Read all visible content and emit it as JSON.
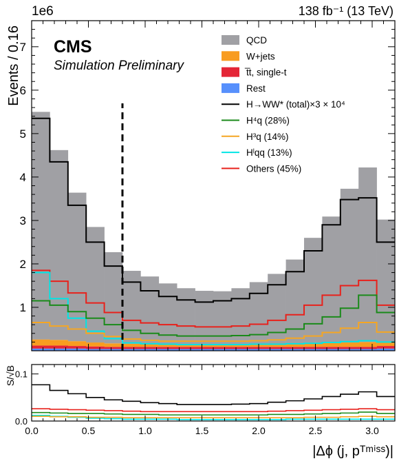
{
  "chart_data": {
    "type": "histogram",
    "header": {
      "exponent": "1e6",
      "lumi": "138 fb⁻¹ (13 TeV)",
      "experiment": "CMS",
      "tag": "Simulation Preliminary"
    },
    "bin_edges": [
      0.0,
      0.16,
      0.32,
      0.48,
      0.64,
      0.8,
      0.96,
      1.12,
      1.28,
      1.44,
      1.6,
      1.76,
      1.92,
      2.08,
      2.24,
      2.4,
      2.56,
      2.72,
      2.88,
      3.04,
      3.2
    ],
    "xlabel": "|Δϕ (j, pᵀᵐⁱˢˢ)|",
    "xticks": [
      0.0,
      0.5,
      1.0,
      1.5,
      2.0,
      2.5,
      3.0
    ],
    "xtick_labels": [
      "0.0",
      "0.5",
      "1.0",
      "1.5",
      "2.0",
      "2.5",
      "3.0"
    ],
    "xlim": [
      0,
      3.2
    ],
    "main": {
      "ylabel": "Events / 0.16",
      "ylim": [
        0,
        7.6
      ],
      "yticks": [
        1,
        2,
        3,
        4,
        5,
        6,
        7
      ],
      "ytick_labels": [
        "1",
        "2",
        "3",
        "4",
        "5",
        "6",
        "7"
      ],
      "cut_line_x": 0.8,
      "stacked": [
        {
          "name": "Rest",
          "color": "#5790fc",
          "values": [
            0.05,
            0.05,
            0.05,
            0.04,
            0.04,
            0.04,
            0.04,
            0.04,
            0.04,
            0.04,
            0.04,
            0.04,
            0.04,
            0.04,
            0.04,
            0.04,
            0.04,
            0.04,
            0.04,
            0.05
          ]
        },
        {
          "name": "t̅t, single-t",
          "color": "#e42536",
          "values": [
            0.07,
            0.07,
            0.06,
            0.06,
            0.05,
            0.05,
            0.05,
            0.05,
            0.05,
            0.05,
            0.05,
            0.05,
            0.05,
            0.05,
            0.05,
            0.05,
            0.05,
            0.05,
            0.05,
            0.06
          ]
        },
        {
          "name": "W+jets",
          "color": "#f89c20",
          "values": [
            0.14,
            0.13,
            0.11,
            0.09,
            0.08,
            0.07,
            0.07,
            0.06,
            0.06,
            0.06,
            0.06,
            0.06,
            0.06,
            0.06,
            0.07,
            0.08,
            0.09,
            0.1,
            0.11,
            0.1
          ]
        },
        {
          "name": "QCD",
          "color": "#a0a0a4",
          "values": [
            5.24,
            4.37,
            3.42,
            2.66,
            2.1,
            1.68,
            1.55,
            1.4,
            1.29,
            1.23,
            1.22,
            1.29,
            1.43,
            1.62,
            1.94,
            2.43,
            2.91,
            3.54,
            4.02,
            2.81
          ]
        }
      ],
      "lines": [
        {
          "name": "H→WW* (total)×3 × 10⁴",
          "color": "#000000",
          "values": [
            5.35,
            4.35,
            3.35,
            2.5,
            1.95,
            1.58,
            1.38,
            1.25,
            1.17,
            1.12,
            1.15,
            1.2,
            1.32,
            1.52,
            1.82,
            2.3,
            2.9,
            3.48,
            3.52,
            2.5
          ]
        },
        {
          "name": "H⁴q (28%)",
          "color": "#1a8a1a",
          "values": [
            1.15,
            1.05,
            0.9,
            0.75,
            0.6,
            0.47,
            0.4,
            0.36,
            0.34,
            0.34,
            0.34,
            0.35,
            0.37,
            0.42,
            0.5,
            0.62,
            0.78,
            0.98,
            1.28,
            0.88
          ]
        },
        {
          "name": "H³q (14%)",
          "color": "#f5a623",
          "values": [
            0.65,
            0.57,
            0.5,
            0.4,
            0.33,
            0.27,
            0.24,
            0.22,
            0.22,
            0.22,
            0.22,
            0.22,
            0.23,
            0.25,
            0.29,
            0.34,
            0.42,
            0.52,
            0.65,
            0.43
          ]
        },
        {
          "name": "Hˡqq (13%)",
          "color": "#00e5e5",
          "values": [
            1.8,
            1.2,
            0.75,
            0.45,
            0.28,
            0.18,
            0.16,
            0.15,
            0.14,
            0.14,
            0.14,
            0.14,
            0.15,
            0.15,
            0.16,
            0.17,
            0.19,
            0.21,
            0.23,
            0.2
          ]
        },
        {
          "name": "Others (45%)",
          "color": "#e8211b",
          "values": [
            1.85,
            1.6,
            1.33,
            1.1,
            0.88,
            0.7,
            0.64,
            0.6,
            0.57,
            0.55,
            0.55,
            0.57,
            0.61,
            0.7,
            0.83,
            1.05,
            1.28,
            1.5,
            1.62,
            1.05
          ]
        }
      ],
      "legend": {
        "placement": "top-right",
        "entries": [
          {
            "label": "QCD",
            "kind": "box",
            "color": "#a0a0a4"
          },
          {
            "label": "W+jets",
            "kind": "box",
            "color": "#f89c20"
          },
          {
            "label": "t̅t, single-t",
            "kind": "box",
            "color": "#e42536"
          },
          {
            "label": "Rest",
            "kind": "box",
            "color": "#5790fc"
          },
          {
            "label": "H→WW* (total)×3 × 10⁴",
            "kind": "line",
            "color": "#000000"
          },
          {
            "label": "H⁴q (28%)",
            "kind": "line",
            "color": "#1a8a1a"
          },
          {
            "label": "H³q (14%)",
            "kind": "line",
            "color": "#f5a623"
          },
          {
            "label": "Hˡqq (13%)",
            "kind": "line",
            "color": "#00e5e5"
          },
          {
            "label": "Others (45%)",
            "kind": "line",
            "color": "#e8211b"
          }
        ]
      }
    },
    "ratio": {
      "ylabel": "S/√B",
      "ylim": [
        0,
        0.12
      ],
      "yticks": [
        0.0,
        0.1
      ],
      "ytick_labels": [
        "0.0",
        "0.1"
      ],
      "lines": [
        {
          "name": "total",
          "color": "#000000",
          "values": [
            0.077,
            0.065,
            0.058,
            0.05,
            0.045,
            0.042,
            0.039,
            0.037,
            0.035,
            0.035,
            0.035,
            0.036,
            0.037,
            0.04,
            0.043,
            0.047,
            0.052,
            0.057,
            0.062,
            0.052
          ]
        },
        {
          "name": "Others",
          "color": "#e8211b",
          "values": [
            0.026,
            0.025,
            0.024,
            0.023,
            0.022,
            0.021,
            0.02,
            0.02,
            0.02,
            0.02,
            0.02,
            0.02,
            0.02,
            0.021,
            0.022,
            0.023,
            0.024,
            0.025,
            0.026,
            0.024
          ]
        },
        {
          "name": "4q",
          "color": "#1a8a1a",
          "values": [
            0.018,
            0.017,
            0.016,
            0.016,
            0.015,
            0.014,
            0.014,
            0.013,
            0.013,
            0.013,
            0.013,
            0.013,
            0.013,
            0.014,
            0.014,
            0.015,
            0.016,
            0.017,
            0.019,
            0.016
          ]
        },
        {
          "name": "3q",
          "color": "#f5a623",
          "values": [
            0.01,
            0.009,
            0.009,
            0.008,
            0.008,
            0.007,
            0.007,
            0.007,
            0.007,
            0.007,
            0.007,
            0.007,
            0.007,
            0.007,
            0.007,
            0.008,
            0.008,
            0.009,
            0.01,
            0.009
          ]
        },
        {
          "name": "lqq",
          "color": "#00e5e5",
          "values": [
            0.012,
            0.01,
            0.008,
            0.006,
            0.005,
            0.004,
            0.004,
            0.004,
            0.003,
            0.003,
            0.003,
            0.003,
            0.003,
            0.003,
            0.004,
            0.004,
            0.004,
            0.004,
            0.004,
            0.004
          ]
        }
      ]
    }
  }
}
